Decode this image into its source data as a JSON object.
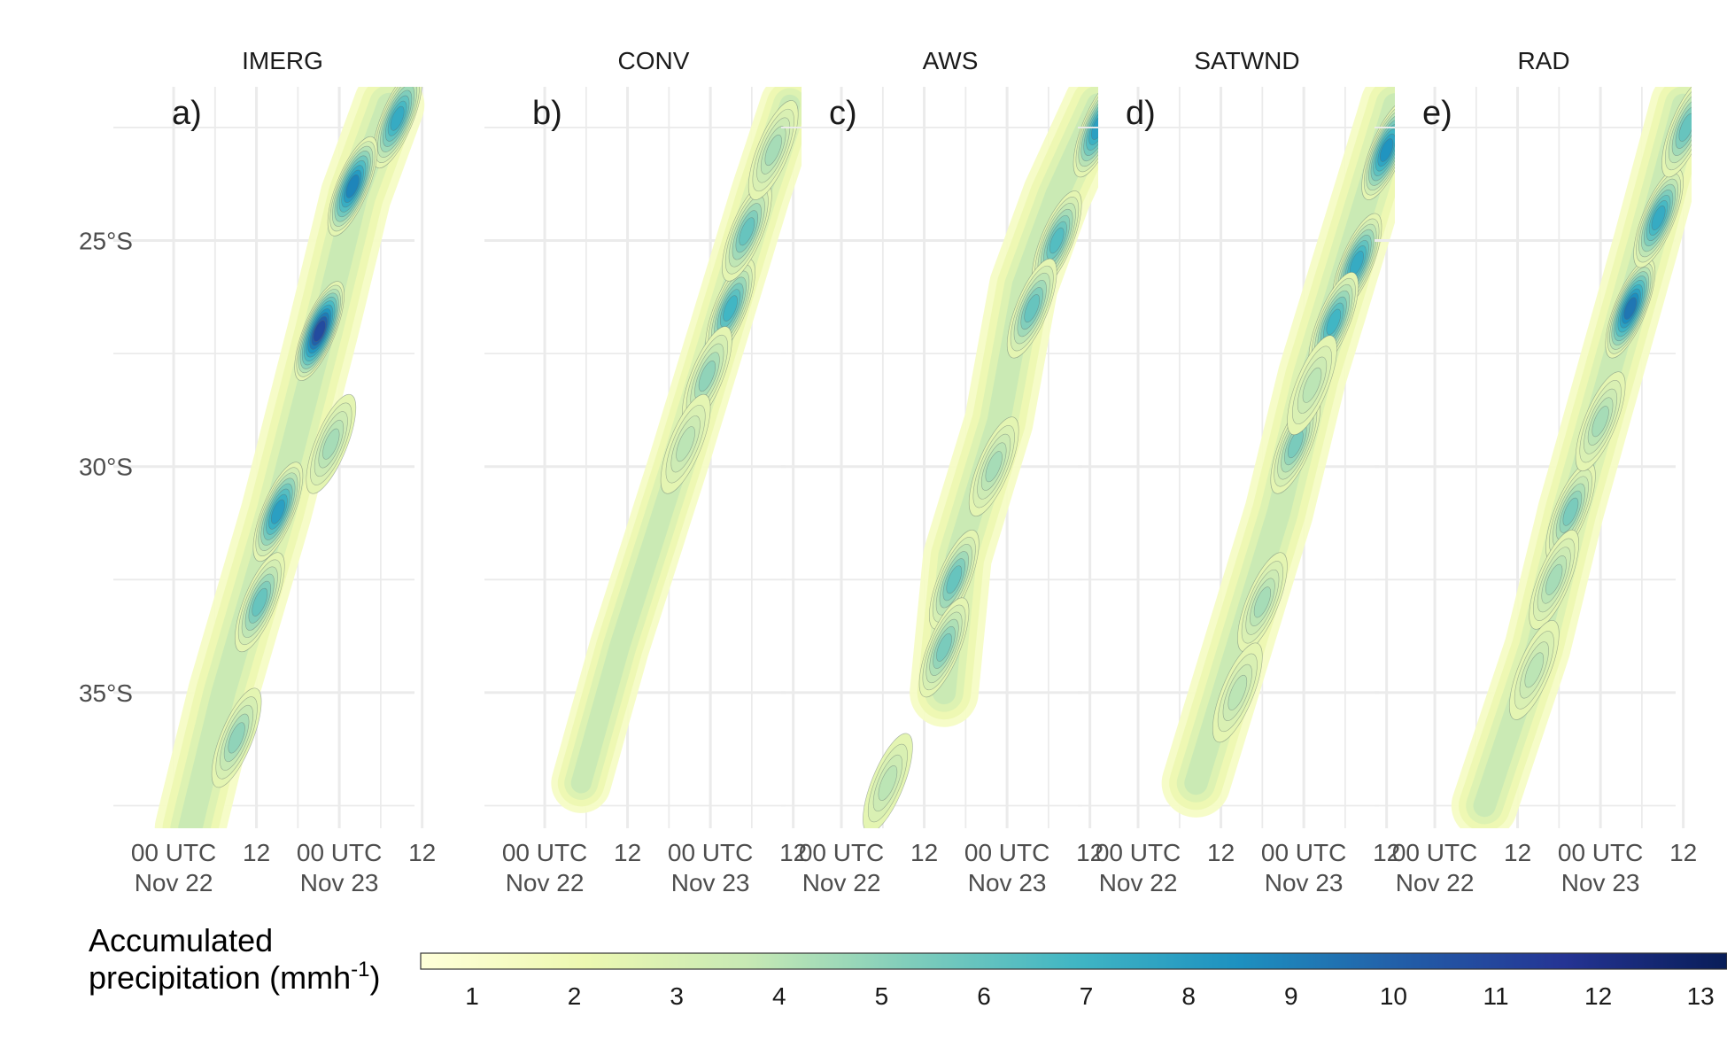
{
  "chart_data": {
    "type": "heatmap",
    "description_panels": [
      "IMERG",
      "CONV",
      "AWS",
      "SATWND",
      "RAD"
    ],
    "panels": [
      {
        "title": "IMERG",
        "tag": "a)",
        "band": [
          [
            -38.0,
            0.1,
            3.0
          ],
          [
            -35.0,
            0.3,
            3.4
          ],
          [
            -31.0,
            0.62,
            3.6
          ],
          [
            -27.0,
            0.9,
            3.2
          ],
          [
            -24.0,
            1.1,
            3.4
          ],
          [
            -22.0,
            1.3,
            3.2
          ]
        ],
        "cores": [
          [
            -22.3,
            1.35,
            7.5
          ],
          [
            -23.8,
            1.08,
            9.0
          ],
          [
            -27.0,
            0.88,
            11.0
          ],
          [
            -31.0,
            0.63,
            8.0
          ],
          [
            -33.0,
            0.52,
            6.0
          ],
          [
            -36.0,
            0.38,
            5.0
          ],
          [
            -29.5,
            0.95,
            4.5
          ]
        ]
      },
      {
        "title": "CONV",
        "tag": "b)",
        "band": [
          [
            -37.0,
            0.22,
            1.6
          ],
          [
            -34.0,
            0.45,
            1.8
          ],
          [
            -30.0,
            0.8,
            2.6
          ],
          [
            -27.0,
            1.05,
            3.0
          ],
          [
            -24.0,
            1.3,
            2.6
          ],
          [
            -22.0,
            1.48,
            2.2
          ]
        ],
        "cores": [
          [
            -26.5,
            1.12,
            7.0
          ],
          [
            -24.8,
            1.22,
            6.0
          ],
          [
            -28.0,
            0.98,
            5.0
          ],
          [
            -29.5,
            0.85,
            4.0
          ],
          [
            -23.0,
            1.38,
            4.5
          ]
        ]
      },
      {
        "title": "AWS",
        "tag": "c)",
        "band": [
          [
            -35.0,
            0.62,
            3.6
          ],
          [
            -32.0,
            0.7,
            4.0
          ],
          [
            -29.0,
            0.95,
            3.2
          ],
          [
            -26.0,
            1.1,
            2.8
          ],
          [
            -24.0,
            1.3,
            2.6
          ],
          [
            -22.0,
            1.55,
            2.4
          ]
        ],
        "cores": [
          [
            -22.5,
            1.55,
            8.0
          ],
          [
            -25.0,
            1.3,
            6.5
          ],
          [
            -26.5,
            1.15,
            6.0
          ],
          [
            -32.5,
            0.68,
            6.0
          ],
          [
            -34.0,
            0.62,
            5.5
          ],
          [
            -30.0,
            0.92,
            4.5
          ],
          [
            -37.0,
            0.28,
            4.0
          ]
        ]
      },
      {
        "title": "SATWND",
        "tag": "d)",
        "band": [
          [
            -37.0,
            0.35,
            2.6
          ],
          [
            -34.0,
            0.6,
            3.6
          ],
          [
            -31.0,
            0.85,
            3.8
          ],
          [
            -28.0,
            1.05,
            3.2
          ],
          [
            -25.0,
            1.3,
            2.8
          ],
          [
            -22.0,
            1.55,
            2.6
          ]
        ],
        "cores": [
          [
            -23.0,
            1.5,
            8.5
          ],
          [
            -25.5,
            1.32,
            7.5
          ],
          [
            -26.8,
            1.18,
            7.0
          ],
          [
            -29.5,
            0.95,
            5.5
          ],
          [
            -33.0,
            0.75,
            4.5
          ],
          [
            -35.0,
            0.6,
            4.0
          ],
          [
            -28.2,
            1.05,
            4.0
          ]
        ]
      },
      {
        "title": "RAD",
        "tag": "e)",
        "band": [
          [
            -37.5,
            0.3,
            2.2
          ],
          [
            -34.0,
            0.62,
            3.0
          ],
          [
            -31.0,
            0.82,
            3.6
          ],
          [
            -28.0,
            1.05,
            3.2
          ],
          [
            -25.0,
            1.28,
            2.8
          ],
          [
            -22.0,
            1.5,
            2.4
          ]
        ],
        "cores": [
          [
            -26.5,
            1.18,
            9.5
          ],
          [
            -24.5,
            1.35,
            7.5
          ],
          [
            -22.5,
            1.52,
            6.0
          ],
          [
            -31.0,
            0.82,
            5.5
          ],
          [
            -32.5,
            0.72,
            4.5
          ],
          [
            -29.0,
            1.0,
            4.5
          ],
          [
            -34.5,
            0.6,
            4.0
          ]
        ]
      }
    ],
    "y_ticks": [
      "25°S",
      "30°S",
      "35°S"
    ],
    "y_tick_values": [
      -25,
      -30,
      -35
    ],
    "ylim": [
      -38.0,
      -21.6
    ],
    "x_ticks": [
      {
        "label": "00 UTC",
        "sublabel": "Nov 22",
        "value": 0.0
      },
      {
        "label": "12",
        "sublabel": "",
        "value": 0.5
      },
      {
        "label": "00 UTC",
        "sublabel": "Nov 23",
        "value": 1.0
      },
      {
        "label": "12",
        "sublabel": "",
        "value": 1.5
      }
    ],
    "xlim_days": [
      -0.15,
      1.55
    ],
    "legend": {
      "title_line1": "Accumulated",
      "title_line2": "precipitation (mmh",
      "title_superscript": "-1",
      "title_close": ")",
      "ticks": [
        "1",
        "2",
        "3",
        "4",
        "5",
        "6",
        "7",
        "8",
        "9",
        "10",
        "11",
        "12",
        "13"
      ],
      "tick_values": [
        1,
        2,
        3,
        4,
        5,
        6,
        7,
        8,
        9,
        10,
        11,
        12,
        13
      ],
      "range": [
        0.5,
        13.5
      ],
      "colormap": [
        "#ffffd9",
        "#edf8b1",
        "#c7e9b4",
        "#7fcdbb",
        "#41b6c4",
        "#1d91c0",
        "#225ea8",
        "#253494",
        "#081d58"
      ]
    },
    "grid": true
  }
}
